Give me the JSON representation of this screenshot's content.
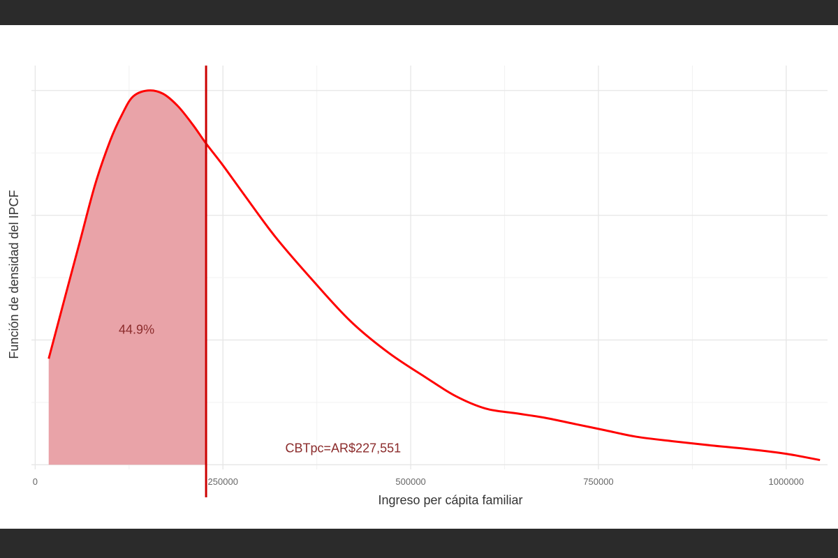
{
  "chart_data": {
    "type": "area",
    "xlabel": "Ingreso per cápita familiar",
    "ylabel": "Función de densidad del IPCF",
    "xlim": [
      -5000,
      1055000
    ],
    "ylim": [
      -0.015,
      1.28
    ],
    "x_ticks": [
      {
        "value": 0,
        "label": "0"
      },
      {
        "value": 250000,
        "label": "250000"
      },
      {
        "value": 500000,
        "label": "500000"
      },
      {
        "value": 750000,
        "label": "750000"
      },
      {
        "value": 1000000,
        "label": "1000000"
      }
    ],
    "y_ticks_shown": false,
    "grid": true,
    "series": [
      {
        "x": [
          18000,
          40000,
          60000,
          80000,
          100000,
          115000,
          130000,
          150000,
          170000,
          190000,
          210000,
          227551,
          250000,
          280000,
          320000,
          370000,
          420000,
          470000,
          520000,
          560000,
          600000,
          640000,
          680000,
          720000,
          760000,
          800000,
          850000,
          900000,
          950000,
          1000000,
          1045000
        ],
        "y": [
          0.34,
          0.54,
          0.72,
          0.9,
          1.04,
          1.12,
          1.18,
          1.2,
          1.19,
          1.15,
          1.09,
          1.03,
          0.96,
          0.86,
          0.73,
          0.59,
          0.46,
          0.36,
          0.28,
          0.22,
          0.18,
          0.165,
          0.15,
          0.13,
          0.11,
          0.09,
          0.075,
          0.062,
          0.05,
          0.035,
          0.015
        ],
        "color": "#ff0000"
      }
    ],
    "shaded_region": {
      "x_from": 18000,
      "x_to": 227551,
      "color": "#e9a3a8"
    },
    "vline": {
      "x": 227551,
      "color": "#cc0000"
    },
    "annotations": [
      {
        "text": "44.9%",
        "x": 135000,
        "y": 0.42
      },
      {
        "text": "CBTpc=AR$227,551",
        "x": 410000,
        "y": 0.04
      }
    ]
  }
}
